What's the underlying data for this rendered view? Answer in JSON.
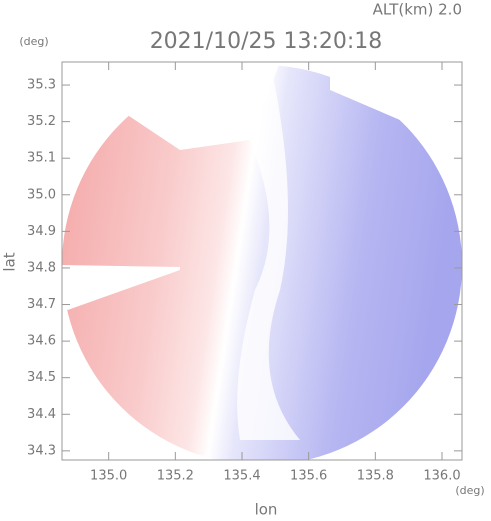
{
  "chart_data": {
    "type": "image",
    "title": "2021/10/25 13:20:18",
    "annotation": "ALT(km) 2.0",
    "x_label": "lon",
    "y_label": "lat",
    "x_unit": "(deg)",
    "y_unit": "(deg)",
    "xlim": [
      134.86,
      136.06
    ],
    "ylim": [
      34.275,
      35.363
    ],
    "xticks": [
      {
        "value": 135,
        "label": "135.0"
      },
      135.2,
      135.4,
      135.6,
      135.8,
      {
        "value": 136,
        "label": "136.0"
      }
    ],
    "yticks": [
      34.3,
      34.4,
      34.5,
      34.6,
      34.7,
      34.8,
      34.9,
      {
        "value": 35,
        "label": "35.0"
      },
      35.1,
      35.2,
      35.3
    ]
  }
}
